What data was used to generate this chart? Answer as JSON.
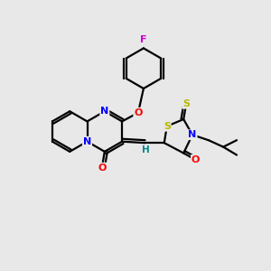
{
  "background_color": "#e8e8e8",
  "atom_colors": {
    "N": "#0000ff",
    "O": "#ff0000",
    "S": "#b8b800",
    "F": "#cc00cc",
    "H": "#008888",
    "C": "#000000"
  },
  "bond_color": "#000000",
  "bond_width": 1.6,
  "figsize": [
    3.0,
    3.0
  ],
  "dpi": 100
}
